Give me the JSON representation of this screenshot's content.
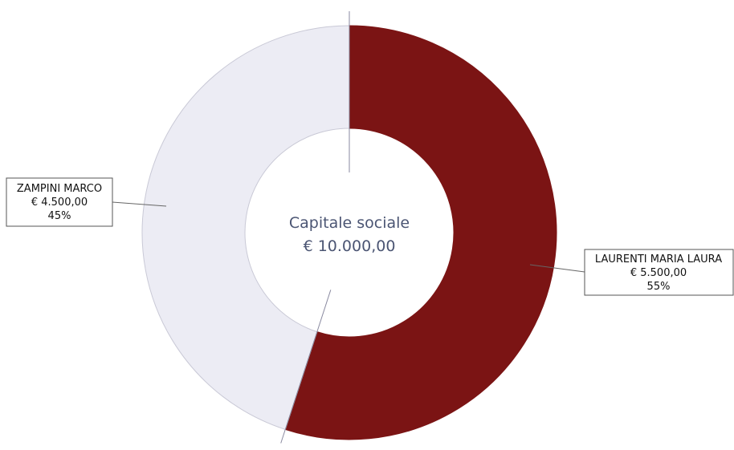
{
  "chart_data": {
    "type": "pie",
    "variant": "donut",
    "center_label": {
      "title": "Capitale sociale",
      "total": "€ 10.000,00"
    },
    "total_value": 10000.0,
    "start_angle_deg": 0,
    "direction": "clockwise",
    "legend": "none",
    "slices": [
      {
        "name": "LAURENTI MARIA LAURA",
        "value": 5500.0,
        "value_label": "€ 5.500,00",
        "percent": 55,
        "percent_label": "55%",
        "color": "#7b1414"
      },
      {
        "name": "ZAMPINI MARCO",
        "value": 4500.0,
        "value_label": "€ 4.500,00",
        "percent": 45,
        "percent_label": "45%",
        "color": "#ececf4"
      }
    ]
  }
}
